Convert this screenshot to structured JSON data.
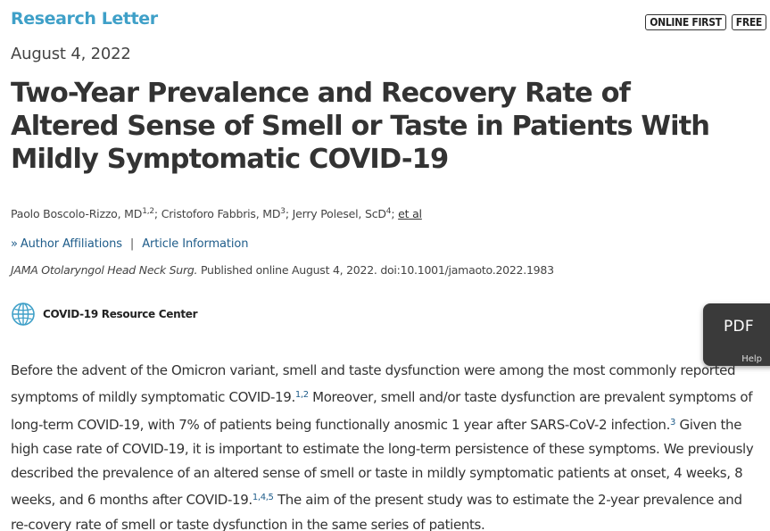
{
  "article_type": "Research Letter",
  "badges": {
    "online_first": "ONLINE FIRST",
    "free": "FREE"
  },
  "date": "August 4, 2022",
  "title": "Two-Year Prevalence and Recovery Rate of Altered Sense of Smell or Taste in Patients With Mildly Symptomatic COVID-19",
  "authors": [
    {
      "name": "Paolo Boscolo-Rizzo, MD",
      "refs": "1,2"
    },
    {
      "name": "Cristoforo Fabbris, MD",
      "refs": "3"
    },
    {
      "name": "Jerry Polesel, ScD",
      "refs": "4"
    }
  ],
  "author_sep": "; ",
  "et_al": "et al",
  "links": {
    "affiliations": "Author Affiliations",
    "separator": "|",
    "article_info": "Article Information"
  },
  "citation": {
    "journal": "JAMA Otolaryngol Head Neck Surg.",
    "rest": " Published online August 4, 2022. doi:10.1001/jamaoto.2022.1983"
  },
  "resource_center": "COVID-19 Resource Center",
  "pdf_widget": {
    "pdf": "PDF",
    "help": "Help"
  },
  "icons": {
    "globe": "globe-icon",
    "chevron": "double-chevron-right-icon"
  },
  "colors": {
    "article_type": "#3fa0c8",
    "link": "#1e5c8a",
    "pdf_bg": "#3a3a3a"
  },
  "body": {
    "s1": "Before the advent of the Omicron variant, smell and taste dysfunction were among the most commonly reported symptoms of mildly symptomatic COVID-19.",
    "r1": "1,2",
    "s2": " Moreover, smell and/or taste dysfunction are prevalent symptoms of long-term COVID-19, with 7% of patients being functionally anosmic 1 year after SARS-CoV-2 infection.",
    "r2": "3",
    "s3": " Given the high case rate of COVID-19, it is important to estimate the long-term persistence of these symptoms. We previously described the prevalence of an altered sense of smell or taste in mildly symptomatic patients at onset, 4 weeks, 8 weeks, and 6 months after COVID-19.",
    "r3": "1,4,5",
    "s4": " The aim of the present study was to estimate the 2-year prevalence and re-covery rate of smell or taste dysfunction in the same series of patients."
  }
}
